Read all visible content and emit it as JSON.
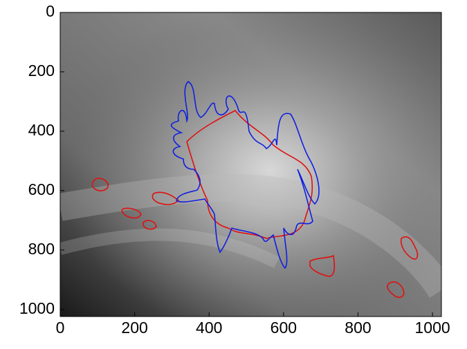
{
  "chart_data": {
    "type": "image",
    "xlim": [
      0,
      1024
    ],
    "ylim": [
      1024,
      0
    ],
    "xticks": [
      0,
      200,
      400,
      600,
      800,
      1000
    ],
    "yticks": [
      0,
      200,
      400,
      600,
      800,
      1000
    ]
  }
}
